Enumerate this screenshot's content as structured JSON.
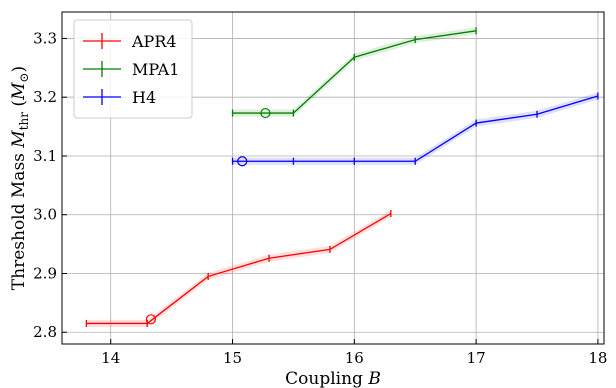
{
  "chart_data": {
    "type": "line",
    "xlabel": "Coupling",
    "xlabel_var": "B",
    "ylabel": "Threshold Mass",
    "ylabel_var": "M",
    "ylabel_sub": "thr",
    "ylabel_unit_open": "(",
    "ylabel_unit": "M",
    "ylabel_unit_sub": "⊙",
    "ylabel_unit_close": ")",
    "xlim": [
      13.6,
      18.05
    ],
    "ylim": [
      2.78,
      3.345
    ],
    "xticks": [
      14,
      15,
      16,
      17,
      18
    ],
    "yticks": [
      2.8,
      2.9,
      3.0,
      3.1,
      3.2,
      3.3
    ],
    "grid": true,
    "legend_position": "top-left",
    "series": [
      {
        "name": "APR4",
        "color": "#ff0000",
        "x": [
          13.8,
          14.3,
          14.8,
          15.3,
          15.8,
          16.3
        ],
        "y": [
          2.815,
          2.815,
          2.895,
          2.926,
          2.941,
          3.002
        ],
        "yerr": 0.006,
        "marker_x": 14.33,
        "marker_y": 2.822
      },
      {
        "name": "MPA1",
        "color": "#008000",
        "x": [
          15.0,
          15.5,
          16.0,
          16.5,
          17.0
        ],
        "y": [
          3.173,
          3.173,
          3.268,
          3.298,
          3.313
        ],
        "yerr": 0.006,
        "marker_x": 15.27,
        "marker_y": 3.173
      },
      {
        "name": "H4",
        "color": "#0000ff",
        "x": [
          15.0,
          15.5,
          16.0,
          16.5,
          17.0,
          17.5,
          18.0
        ],
        "y": [
          3.091,
          3.091,
          3.091,
          3.091,
          3.156,
          3.171,
          3.202
        ],
        "yerr": 0.006,
        "marker_x": 15.08,
        "marker_y": 3.091
      }
    ]
  }
}
